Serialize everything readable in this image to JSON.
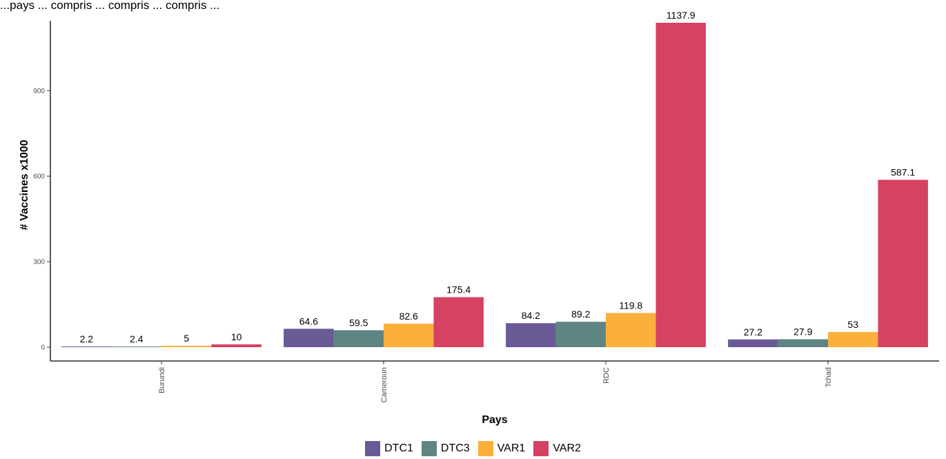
{
  "chart_data": {
    "type": "bar",
    "title": "...pays ... compris ... compris ... compris ...",
    "xlabel": "Pays",
    "ylabel": "# Vaccines x1000",
    "categories": [
      "Burundi",
      "Cameroun",
      "RDC",
      "Tchad"
    ],
    "series": [
      {
        "name": "DTC1",
        "color": "#6a5a96",
        "values": [
          2.2,
          64.6,
          84.2,
          27.2
        ]
      },
      {
        "name": "DTC3",
        "color": "#5f8583",
        "values": [
          2.4,
          59.5,
          89.2,
          27.9
        ]
      },
      {
        "name": "VAR1",
        "color": "#fbb03b",
        "values": [
          5,
          82.6,
          119.8,
          53
        ]
      },
      {
        "name": "VAR2",
        "color": "#d64262",
        "values": [
          10,
          175.4,
          1137.9,
          587.1
        ]
      }
    ],
    "yticks": [
      0,
      300,
      600,
      900
    ],
    "ylim": [
      0,
      1137.9
    ],
    "grid": false,
    "legend_position": "bottom"
  }
}
